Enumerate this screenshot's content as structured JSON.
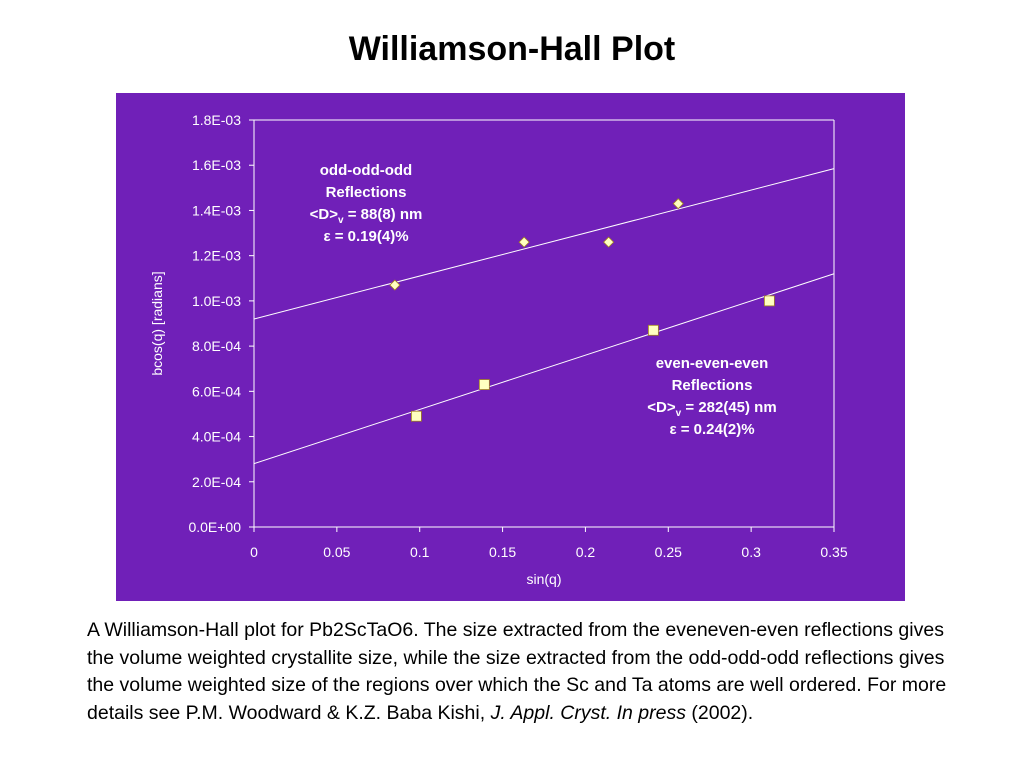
{
  "slide": {
    "title": "Williamson-Hall Plot"
  },
  "caption": {
    "text": "A Williamson-Hall plot for Pb2ScTaO6. The size extracted from the eveneven-even reflections gives the volume weighted crystallite size, while the size extracted from the odd-odd-odd reflections gives the volume weighted size of the regions over which the Sc and Ta atoms are well ordered. For more details see P.M. Woodward & K.Z. Baba Kishi, ",
    "journal": "J. Appl. Cryst. In press",
    "year": " (2002)."
  },
  "colors": {
    "panel_background": "#7020b8",
    "plot_text": "#ffffff",
    "odd_marker": "#ffffc0",
    "even_marker": "#ffffc0"
  },
  "chart_data": {
    "type": "scatter",
    "xlabel": "sin(q)",
    "ylabel": "bcos(q)  [radians]",
    "xlim": [
      0,
      0.35
    ],
    "ylim": [
      0,
      0.0018
    ],
    "x_ticks": [
      "0",
      "0.05",
      "0.1",
      "0.15",
      "0.2",
      "0.25",
      "0.3",
      "0.35"
    ],
    "y_ticks": [
      "0.0E+00",
      "2.0E-04",
      "4.0E-04",
      "6.0E-04",
      "8.0E-04",
      "1.0E-03",
      "1.2E-03",
      "1.4E-03",
      "1.6E-03",
      "1.8E-03"
    ],
    "grid": "horizontal-top-only",
    "series": [
      {
        "name": "odd-odd-odd",
        "marker": "diamond",
        "x": [
          0.085,
          0.163,
          0.214,
          0.256
        ],
        "y": [
          0.00107,
          0.00126,
          0.00126,
          0.00143
        ],
        "fit": {
          "intercept": 0.00092,
          "slope": 0.0019
        }
      },
      {
        "name": "even-even-even",
        "marker": "square",
        "x": [
          0.098,
          0.139,
          0.241,
          0.311
        ],
        "y": [
          0.00049,
          0.00063,
          0.00087,
          0.001
        ],
        "fit": {
          "intercept": 0.00028,
          "slope": 0.0024
        }
      }
    ],
    "annotations": [
      {
        "name": "odd-annotation",
        "lines": [
          "odd-odd-odd",
          "Reflections",
          "<D>",
          "v",
          " = 88(8) nm",
          "ε = 0.19(4)%"
        ]
      },
      {
        "name": "even-annotation",
        "lines": [
          "even-even-even",
          "Reflections",
          "<D>",
          "v",
          " = 282(45) nm",
          "ε = 0.24(2)%"
        ]
      }
    ]
  }
}
